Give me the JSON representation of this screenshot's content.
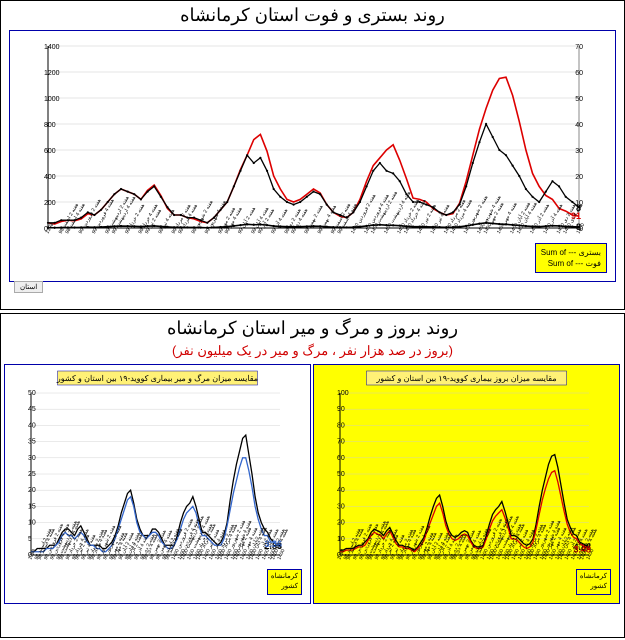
{
  "top": {
    "title": "روند بستری و فوت استان کرمانشاه",
    "chart": {
      "type": "line",
      "background_color": "#ffffff",
      "frame_color": "#0000aa",
      "grid_color": "#cccccc",
      "left_axis": {
        "min": 0,
        "max": 1400,
        "step": 200,
        "color": "#000000"
      },
      "right_axis": {
        "min": 0,
        "max": 70,
        "step": 10,
        "color": "#888888"
      },
      "x_color": "#0000aa",
      "series_red": {
        "label": "بستری Sum of",
        "color": "#dd0000",
        "end_value": 91,
        "values": [
          40,
          30,
          50,
          60,
          55,
          70,
          110,
          100,
          140,
          200,
          260,
          300,
          280,
          260,
          220,
          290,
          330,
          250,
          150,
          100,
          100,
          80,
          70,
          50,
          40,
          80,
          140,
          200,
          320,
          450,
          560,
          680,
          720,
          590,
          400,
          300,
          220,
          200,
          220,
          260,
          300,
          270,
          180,
          120,
          90,
          80,
          120,
          220,
          360,
          480,
          540,
          600,
          640,
          520,
          380,
          230,
          220,
          200,
          150,
          120,
          100,
          110,
          190,
          360,
          560,
          760,
          920,
          1060,
          1150,
          1160,
          1020,
          820,
          600,
          420,
          320,
          250,
          220,
          150,
          130,
          100,
          91
        ]
      },
      "series_black": {
        "label": "فوت Sum of",
        "color": "#000000",
        "marker": "dot",
        "end_value": 8,
        "values": [
          2,
          2,
          3,
          3,
          3,
          4,
          6,
          5,
          7,
          10,
          13,
          15,
          14,
          13,
          11,
          14,
          16,
          12,
          8,
          5,
          5,
          4,
          4,
          3,
          2,
          4,
          7,
          10,
          16,
          22,
          28,
          25,
          27,
          22,
          15,
          12,
          10,
          9,
          10,
          12,
          14,
          13,
          9,
          6,
          5,
          4,
          6,
          10,
          16,
          22,
          25,
          22,
          21,
          18,
          13,
          10,
          10,
          9,
          8,
          6,
          5,
          6,
          9,
          16,
          25,
          33,
          40,
          35,
          30,
          28,
          24,
          20,
          15,
          12,
          10,
          14,
          18,
          16,
          12,
          10,
          8
        ]
      },
      "x_labels": [
        "1398",
        "هفته 2 اسفند 98",
        "هفته 4 اسفند 98",
        "هفته 2 فروردین 99",
        "هفته 4 فروردین 99",
        "هفته 2 اردیبهشت 99",
        "هفته 4 اردیبهشت 99",
        "هفته 2 خرداد 99",
        "هفته 4 خرداد 99",
        "هفته 2 تیر 99",
        "هفته 4 تیر 99",
        "هفته 2 مرداد 99",
        "هفته 4 مرداد 99",
        "هفته 2 شهریور 99",
        "هفته 4 شهریور 99",
        "هفته 2 مهر 99",
        "هفته 4 مهر 99",
        "هفته 2 آبان 99",
        "هفته 4 آبان 99",
        "هفته 2 آذر 99",
        "هفته 4 آذر 99",
        "هفته 2 دی 99",
        "هفته 4 دی 99",
        "هفته 2 بهمن 99",
        "هفته 4 بهمن 99",
        "هفته 2 اسفند 99",
        "هفته 4 اسفند 99",
        "هفته 2 فروردین 1400",
        "هفته 4 فروردین 1400",
        "هفته 2 اردیبهشت 1400",
        "هفته 4 اردیبهشت 1400",
        "هفته 2 خرداد 1400",
        "هفته 4 خرداد 1400",
        "هفته 2 تیر 1400",
        "هفته 4 تیر 1400",
        "هفته 2 مرداد 1400",
        "هفته 4 مرداد 1400",
        "هفته 2 شهریور 1400",
        "هفته 4 شهریور 1400",
        "هفته 2 مهر 1400",
        "هفته 4 مهر 1400",
        "هفته 2 آبان 1400",
        "هفته 4 آبان 1400",
        "هفته 2 آذر 1400",
        "هفته 4 آذر 1400",
        "هفته 2 دی 1400",
        "هفته 4 دی 1400",
        "1400"
      ],
      "legend_items": [
        "بستری --- Sum of",
        "فوت --- Sum of"
      ]
    }
  },
  "bottom": {
    "title": "روند بروز و مرگ و میر استان کرمانشاه",
    "subtitle": "(بروز در صد هزار نفر ، مرگ و میر در یک میلیون نفر)",
    "left_chart": {
      "type": "line",
      "background_color": "#ffff00",
      "inner_title": "مقایسه میزان بروز بیماری کووید-۱۹ بین استان و کشور",
      "left_axis": {
        "min": 0,
        "max": 100,
        "step": 10
      },
      "series_red": {
        "label": "کرمانشاه",
        "color": "#dd0000",
        "end_value": 3.48,
        "values": [
          2,
          2,
          3,
          3,
          3,
          4,
          5,
          5,
          6,
          9,
          12,
          14,
          13,
          12,
          10,
          13,
          15,
          11,
          7,
          5,
          5,
          4,
          4,
          3,
          2,
          4,
          6,
          9,
          15,
          20,
          25,
          30,
          32,
          26,
          18,
          13,
          10,
          9,
          10,
          12,
          13,
          12,
          8,
          5,
          4,
          4,
          5,
          10,
          16,
          21,
          24,
          26,
          28,
          23,
          17,
          10,
          10,
          9,
          7,
          5,
          4,
          5,
          8,
          16,
          25,
          34,
          41,
          47,
          51,
          52,
          45,
          36,
          27,
          19,
          14,
          11,
          10,
          7,
          6,
          5,
          3.48
        ]
      },
      "series_black": {
        "label": "کشور",
        "color": "#000000",
        "end_value": 4.88,
        "values": [
          3,
          3,
          4,
          4,
          4,
          5,
          6,
          6,
          8,
          10,
          14,
          16,
          15,
          14,
          12,
          15,
          17,
          13,
          9,
          6,
          6,
          5,
          5,
          4,
          3,
          5,
          8,
          11,
          17,
          24,
          30,
          35,
          37,
          30,
          21,
          15,
          12,
          11,
          12,
          14,
          15,
          14,
          9,
          6,
          5,
          5,
          6,
          12,
          19,
          25,
          28,
          30,
          33,
          27,
          20,
          12,
          12,
          11,
          9,
          7,
          6,
          7,
          10,
          19,
          30,
          40,
          48,
          56,
          61,
          62,
          54,
          43,
          32,
          22,
          17,
          13,
          12,
          8,
          7,
          6,
          4.88
        ]
      },
      "legend_items": [
        "کرمانشاه",
        "کشور"
      ]
    },
    "right_chart": {
      "type": "line",
      "background_color": "#ffffff",
      "inner_title": "مقایسه میزان مرگ و میر بیماری کووید-۱۹ بین استان و کشور",
      "left_axis": {
        "min": 0,
        "max": 50,
        "step": 5
      },
      "series_blue": {
        "label": "کرمانشاه",
        "color": "#3366cc",
        "end_value": 3.36,
        "values": [
          1,
          1,
          1,
          1,
          1,
          2,
          2,
          2,
          3,
          4,
          6,
          7,
          6,
          6,
          5,
          6,
          7,
          6,
          4,
          3,
          3,
          2,
          2,
          1,
          1,
          2,
          3,
          5,
          8,
          11,
          14,
          17,
          18,
          15,
          10,
          7,
          6,
          5,
          6,
          7,
          7,
          6,
          4,
          3,
          2,
          2,
          3,
          5,
          8,
          11,
          13,
          14,
          15,
          13,
          9,
          6,
          6,
          5,
          4,
          3,
          3,
          3,
          5,
          9,
          14,
          19,
          23,
          27,
          30,
          30,
          26,
          21,
          15,
          11,
          8,
          6,
          6,
          4,
          4,
          3,
          3.36
        ]
      },
      "series_black": {
        "label": "کشور",
        "color": "#000000",
        "end_value": 2.83,
        "values": [
          1,
          1,
          2,
          2,
          2,
          2,
          3,
          3,
          3,
          5,
          7,
          8,
          8,
          7,
          6,
          8,
          9,
          7,
          5,
          3,
          3,
          3,
          3,
          2,
          2,
          3,
          4,
          6,
          9,
          13,
          16,
          19,
          20,
          16,
          11,
          8,
          6,
          6,
          6,
          8,
          8,
          7,
          5,
          3,
          3,
          3,
          3,
          6,
          10,
          13,
          15,
          16,
          18,
          15,
          11,
          7,
          7,
          6,
          5,
          4,
          3,
          4,
          6,
          10,
          17,
          23,
          28,
          32,
          36,
          37,
          31,
          25,
          18,
          13,
          10,
          8,
          7,
          5,
          4,
          3,
          2.83
        ]
      },
      "legend_items": [
        "کرمانشاه",
        "کشور"
      ]
    }
  },
  "tab_label": "استان"
}
